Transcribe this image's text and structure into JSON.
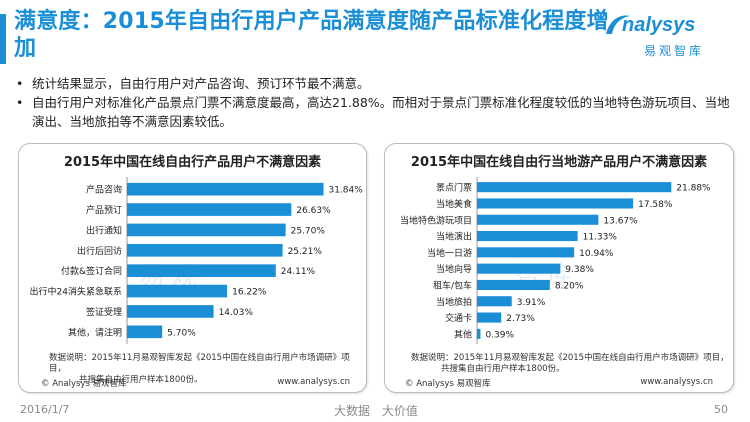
{
  "header": {
    "title": "满意度：2015年自由行用户产品满意度随产品标准化程度增加",
    "logo_word": "nalysys",
    "logo_cn": "易观智库"
  },
  "bullets": [
    "统计结果显示，自由行用户对产品咨询、预订环节最不满意。",
    "自由行用户对标准化产品景点门票不满意度最高，高达21.88%。而相对于景点门票标准化程度较低的当地特色游玩项目、当地演出、当地旅拍等不满意因素较低。"
  ],
  "chart_data": [
    {
      "type": "bar",
      "orientation": "horizontal",
      "title": "2015年中国在线自由行产品用户不满意因素",
      "categories": [
        "产品咨询",
        "产品预订",
        "出行通知",
        "出行后回访",
        "付款&签订合同",
        "出行中24消失紧急联系",
        "签证受理",
        "其他，请注明"
      ],
      "values": [
        31.84,
        26.63,
        25.7,
        25.21,
        24.11,
        16.22,
        14.03,
        5.7
      ],
      "labels": [
        "31.84%",
        "26.63%",
        "25.70%",
        "25.21%",
        "24.11%",
        "16.22%",
        "14.03%",
        "5.70%"
      ],
      "xlim": [
        0,
        35
      ],
      "color": "#1a8fd6"
    },
    {
      "type": "bar",
      "orientation": "horizontal",
      "title": "2015年中国在线自由行当地游产品用户不满意因素",
      "categories": [
        "景点门票",
        "当地美食",
        "当地特色游玩项目",
        "当地演出",
        "当地一日游",
        "当地向导",
        "租车/包车",
        "当地旅拍",
        "交通卡",
        "其他"
      ],
      "values": [
        21.88,
        17.58,
        13.67,
        11.33,
        10.94,
        9.38,
        8.2,
        3.91,
        2.73,
        0.39
      ],
      "labels": [
        "21.88%",
        "17.58%",
        "13.67%",
        "11.33%",
        "10.94%",
        "9.38%",
        "8.20%",
        "3.91%",
        "2.73%",
        "0.39%"
      ],
      "xlim": [
        0,
        25
      ],
      "color": "#1a8fd6"
    }
  ],
  "notes": {
    "left_line1": "数据说明：2015年11月易观智库发起《2015中国在线自由行用户市场调研》项目，",
    "left_line2": "共搜集自由行用户样本1800份。",
    "right_line1": "数据说明：2015年11月易观智库发起《2015中国在线自由行用户市场调研》项目，",
    "right_line2": "共搜集自由行用户样本1800份。",
    "copyright_left": "© Analysys 易观智库",
    "url_left": "www.analysys.cn",
    "copyright_right": "© Analysys 易观智库",
    "url_right": "www.analysys.cn"
  },
  "footer": {
    "date": "2016/1/7",
    "center_a": "大数据",
    "center_b": "大价值",
    "page": "50"
  }
}
